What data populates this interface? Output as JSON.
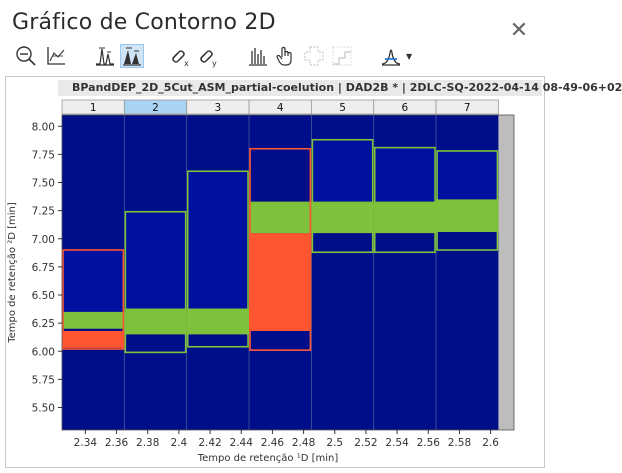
{
  "window": {
    "title": "Gráfico de Contorno 2D",
    "close_glyph": "✕"
  },
  "toolbar": {
    "tools": [
      {
        "name": "zoom-out-icon"
      },
      {
        "name": "axis-scale-icon"
      },
      {
        "name": "peak-detect-icon"
      },
      {
        "name": "peak-area-icon",
        "active": true
      },
      {
        "name": "link-x-icon"
      },
      {
        "name": "link-y-icon"
      },
      {
        "name": "spectrum-bars-icon"
      },
      {
        "name": "hand-pan-icon"
      },
      {
        "name": "add-region-icon",
        "disabled": true
      },
      {
        "name": "step-region-icon",
        "disabled": true
      },
      {
        "name": "peak-shape-icon",
        "dropdown": true
      }
    ]
  },
  "chart_data": {
    "type": "heatmap",
    "title": "BPandDEP_2D_5Cut_ASM_partial-coelution | DAD2B * | 2DLC-SQ-2022-04-14 08-49-06+02",
    "xlabel": "Tempo de retenção ¹D [min]",
    "ylabel": "Tempo de retenção ²D [min]",
    "xlim": [
      2.325,
      2.615
    ],
    "ylim": [
      5.3,
      8.1
    ],
    "x_ticks": [
      "2.34",
      "2.36",
      "2.38",
      "2.4",
      "2.42",
      "2.44",
      "2.46",
      "2.48",
      "2.5",
      "2.52",
      "2.54",
      "2.56",
      "2.58",
      "2.6"
    ],
    "x_tick_values": [
      2.34,
      2.36,
      2.38,
      2.4,
      2.42,
      2.44,
      2.46,
      2.48,
      2.5,
      2.52,
      2.54,
      2.56,
      2.58,
      2.6
    ],
    "y_ticks": [
      "5.50",
      "5.75",
      "6.00",
      "6.25",
      "6.50",
      "6.75",
      "7.00",
      "7.25",
      "7.50",
      "7.75",
      "8.00"
    ],
    "y_tick_values": [
      5.5,
      5.75,
      6.0,
      6.25,
      6.5,
      6.75,
      7.0,
      7.25,
      7.5,
      7.75,
      8.0
    ],
    "modulations": [
      {
        "label": "1",
        "x0": 2.325,
        "x1": 2.365,
        "selected": false
      },
      {
        "label": "2",
        "x0": 2.365,
        "x1": 2.405,
        "selected": true
      },
      {
        "label": "3",
        "x0": 2.405,
        "x1": 2.445,
        "selected": false
      },
      {
        "label": "4",
        "x0": 2.445,
        "x1": 2.485,
        "selected": false
      },
      {
        "label": "5",
        "x0": 2.485,
        "x1": 2.525,
        "selected": false
      },
      {
        "label": "6",
        "x0": 2.525,
        "x1": 2.565,
        "selected": false
      },
      {
        "label": "7",
        "x0": 2.565,
        "x1": 2.605,
        "selected": false
      }
    ],
    "gray_region": {
      "x0": 2.605,
      "x1": 2.615
    },
    "bands": [
      {
        "x0": 2.325,
        "x1": 2.365,
        "y0": 6.2,
        "y1": 6.35,
        "color": "#7ec13a"
      },
      {
        "x0": 2.325,
        "x1": 2.365,
        "y0": 6.03,
        "y1": 6.18,
        "color": "#ff5530"
      },
      {
        "x0": 2.365,
        "x1": 2.405,
        "y0": 6.15,
        "y1": 6.38,
        "color": "#7ec13a"
      },
      {
        "x0": 2.405,
        "x1": 2.445,
        "y0": 6.15,
        "y1": 6.38,
        "color": "#7ec13a"
      },
      {
        "x0": 2.445,
        "x1": 2.485,
        "y0": 6.18,
        "y1": 7.05,
        "color": "#ff5530"
      },
      {
        "x0": 2.445,
        "x1": 2.485,
        "y0": 7.05,
        "y1": 7.33,
        "color": "#7ec13a"
      },
      {
        "x0": 2.485,
        "x1": 2.525,
        "y0": 7.05,
        "y1": 7.33,
        "color": "#7ec13a"
      },
      {
        "x0": 2.525,
        "x1": 2.565,
        "y0": 7.05,
        "y1": 7.33,
        "color": "#7ec13a"
      },
      {
        "x0": 2.565,
        "x1": 2.605,
        "y0": 7.06,
        "y1": 7.35,
        "color": "#7ec13a"
      }
    ],
    "outlines": [
      {
        "x0": 2.325,
        "x1": 2.365,
        "y0": 6.02,
        "y1": 6.9,
        "color": "#ff5530"
      },
      {
        "x0": 2.365,
        "x1": 2.405,
        "y0": 5.99,
        "y1": 7.24,
        "color": "#7ec13a"
      },
      {
        "x0": 2.405,
        "x1": 2.445,
        "y0": 6.04,
        "y1": 7.6,
        "color": "#7ec13a"
      },
      {
        "x0": 2.445,
        "x1": 2.485,
        "y0": 6.01,
        "y1": 7.8,
        "color": "#ff5530"
      },
      {
        "x0": 2.485,
        "x1": 2.525,
        "y0": 6.88,
        "y1": 7.88,
        "color": "#7ec13a"
      },
      {
        "x0": 2.525,
        "x1": 2.565,
        "y0": 6.88,
        "y1": 7.81,
        "color": "#7ec13a"
      },
      {
        "x0": 2.565,
        "x1": 2.605,
        "y0": 6.9,
        "y1": 7.78,
        "color": "#7ec13a"
      }
    ],
    "colors": {
      "background": "#000e8a",
      "selected_header": "#a9d3f3",
      "header": "#eeeeee",
      "gray_region": "#bdbdbd"
    },
    "grid": false
  }
}
